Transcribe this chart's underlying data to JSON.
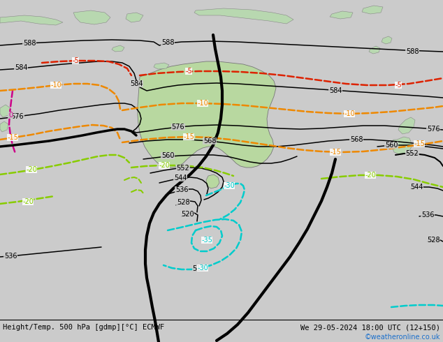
{
  "title_left": "Height/Temp. 500 hPa [gdmp][°C] ECMWF",
  "title_right": "We 29-05-2024 18:00 UTC (12+150)",
  "credit": "©weatheronline.co.uk",
  "bg_color": "#cbcbcb",
  "land_color": "#b8d8b0",
  "australia_color": "#b8d8a0",
  "ocean_color": "#cbcbcb",
  "text_color": "#000000",
  "credit_color": "#1a6fcc",
  "c_black": "#000000",
  "c_red": "#dd2200",
  "c_orange": "#ee8800",
  "c_cyan": "#00cccc",
  "c_green": "#88cc00",
  "c_magenta": "#cc0088",
  "figsize": [
    6.34,
    4.9
  ],
  "dpi": 100
}
